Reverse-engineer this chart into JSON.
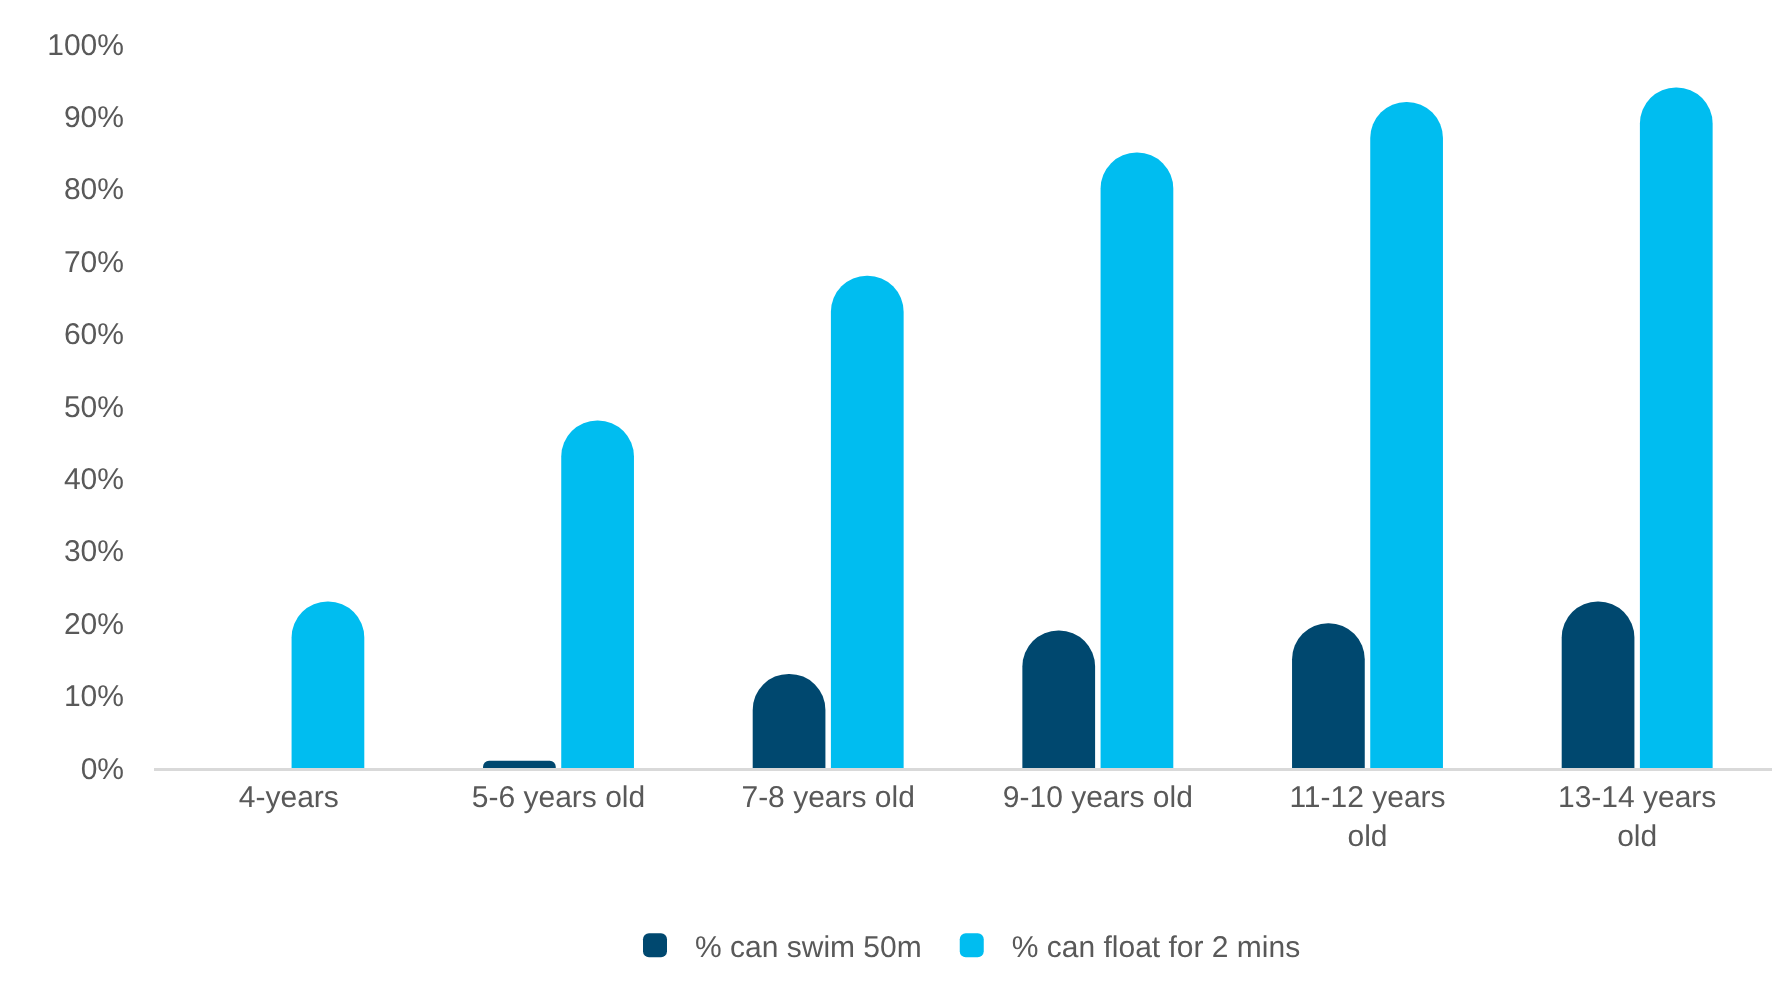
{
  "chart_data": {
    "type": "bar",
    "categories": [
      "4-years",
      "5-6 years old",
      "7-8 years old",
      "9-10 years old",
      "11-12 years old",
      "13-14 years old"
    ],
    "series": [
      {
        "name": "% can swim 50m",
        "color": "#00486f",
        "values": [
          null,
          1,
          13,
          19,
          20,
          23
        ]
      },
      {
        "name": "% can float for 2 mins",
        "color": "#00bdf0",
        "values": [
          23,
          48,
          68,
          85,
          92,
          94
        ]
      }
    ],
    "ylim": [
      0,
      100
    ],
    "yticks": [
      {
        "value": 0,
        "label": "0%"
      },
      {
        "value": 10,
        "label": "10%"
      },
      {
        "value": 20,
        "label": "20%"
      },
      {
        "value": 30,
        "label": "30%"
      },
      {
        "value": 40,
        "label": "40%"
      },
      {
        "value": 50,
        "label": "50%"
      },
      {
        "value": 60,
        "label": "60%"
      },
      {
        "value": 70,
        "label": "70%"
      },
      {
        "value": 80,
        "label": "80%"
      },
      {
        "value": 90,
        "label": "90%"
      },
      {
        "value": 100,
        "label": "100%"
      }
    ],
    "grid": false,
    "legend": "bottom"
  }
}
